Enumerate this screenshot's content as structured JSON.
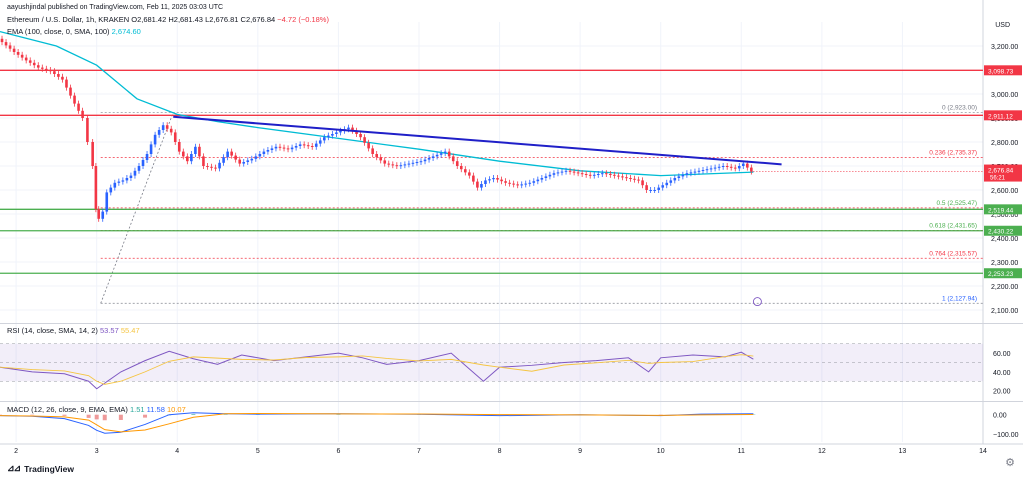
{
  "header": {
    "author_line": "aayushjindal published on TradingView.com, Feb 11, 2025 03:03 UTC",
    "symbol_line": "Ethereum / U.S. Dollar, 1h, KRAKEN",
    "ohlc": {
      "o": "O2,681.42",
      "h": "H2,681.43",
      "l": "L2,676.81",
      "c": "C2,676.84",
      "chg": "−4.72 (−0.18%)"
    },
    "ema_label": "EMA (100, close, 0, SMA, 100)",
    "ema_value": "2,674.60",
    "currency": "USD"
  },
  "rsi_header": {
    "label": "RSI (14, close, SMA, 14, 2)",
    "value": "53.57",
    "ma_value": "55.47"
  },
  "macd_header": {
    "label": "MACD (12, 26, close, 9, EMA, EMA)",
    "v1": "1.51",
    "v2": "11.58",
    "v3": "10.07"
  },
  "footer": {
    "brand": "TradingView"
  },
  "colors": {
    "up": "#2962ff",
    "down": "#f23645",
    "ema": "#00bcd4",
    "resistance": "#f23645",
    "support": "#4caf50",
    "trendline": "#1f1fc8",
    "rsi": "#7e57c2",
    "rsi_ma": "#f5c542",
    "macd": "#2962ff",
    "signal": "#ff9800"
  },
  "chart_data": {
    "type": "line",
    "title": "",
    "xlabel": "",
    "ylabel": "USD",
    "x_ticks": [
      "2",
      "3",
      "4",
      "5",
      "6",
      "7",
      "8",
      "9",
      "10",
      "11",
      "12",
      "13",
      "14"
    ],
    "x_range": [
      1.8,
      14
    ],
    "ylim": [
      2050,
      3300
    ],
    "y_ticks": [
      2100,
      2200,
      2300,
      2400,
      2500,
      2600,
      2700,
      2800,
      2900,
      3000,
      3100,
      3200
    ],
    "price_path": {
      "x": [
        1.8,
        2.0,
        2.15,
        2.3,
        2.45,
        2.6,
        2.75,
        2.85,
        2.92,
        2.98,
        3.0,
        3.05,
        3.1,
        3.15,
        3.25,
        3.35,
        3.45,
        3.55,
        3.65,
        3.75,
        3.85,
        3.95,
        4.05,
        4.15,
        4.25,
        4.35,
        4.5,
        4.65,
        4.8,
        4.95,
        5.1,
        5.25,
        5.4,
        5.55,
        5.7,
        5.85,
        6.0,
        6.15,
        6.3,
        6.45,
        6.6,
        6.75,
        6.9,
        7.05,
        7.2,
        7.35,
        7.5,
        7.65,
        7.75,
        7.85,
        7.95,
        8.1,
        8.25,
        8.4,
        8.55,
        8.7,
        8.85,
        9.0,
        9.15,
        9.3,
        9.45,
        9.6,
        9.75,
        9.85,
        9.95,
        10.05,
        10.2,
        10.35,
        10.5,
        10.65,
        10.8,
        10.95,
        11.05,
        11.15
      ],
      "y": [
        3230,
        3175,
        3140,
        3110,
        3095,
        3060,
        2960,
        2900,
        2800,
        2700,
        2520,
        2480,
        2510,
        2590,
        2630,
        2640,
        2660,
        2700,
        2750,
        2830,
        2870,
        2840,
        2760,
        2720,
        2780,
        2700,
        2690,
        2760,
        2710,
        2730,
        2760,
        2780,
        2770,
        2790,
        2780,
        2820,
        2840,
        2860,
        2820,
        2750,
        2710,
        2700,
        2710,
        2720,
        2740,
        2760,
        2700,
        2660,
        2610,
        2640,
        2650,
        2630,
        2620,
        2630,
        2650,
        2670,
        2680,
        2670,
        2660,
        2670,
        2660,
        2650,
        2640,
        2600,
        2600,
        2620,
        2650,
        2670,
        2680,
        2690,
        2700,
        2690,
        2710,
        2676.84
      ]
    },
    "ema100": {
      "x": [
        1.8,
        2.5,
        3.0,
        3.5,
        4.0,
        4.5,
        5.0,
        6.0,
        7.0,
        8.0,
        9.0,
        10.0,
        11.15
      ],
      "y": [
        3260,
        3200,
        3120,
        2980,
        2915,
        2885,
        2860,
        2815,
        2770,
        2720,
        2680,
        2660,
        2674.6
      ]
    },
    "trendline": {
      "x": [
        3.95,
        11.5
      ],
      "y": [
        2905,
        2707
      ]
    },
    "horizontal_levels": [
      {
        "value": 3098.73,
        "label": "3,098.73",
        "kind": "resistance"
      },
      {
        "value": 2911.12,
        "label": "2,911.12",
        "kind": "resistance"
      },
      {
        "value": 2519.44,
        "label": "2,519.44",
        "kind": "support"
      },
      {
        "value": 2430.22,
        "label": "2,430.22",
        "kind": "support"
      },
      {
        "value": 2253.23,
        "label": "2,253.23",
        "kind": "support"
      }
    ],
    "fibonacci": [
      {
        "value": 2923.0,
        "label": "0 (2,923.00)"
      },
      {
        "value": 2735.37,
        "label": "0.236 (2,735.37)"
      },
      {
        "value": 2525.47,
        "label": "0.5 (2,525.47)"
      },
      {
        "value": 2431.65,
        "label": "0.618 (2,431.65)"
      },
      {
        "value": 2315.57,
        "label": "0.764 (2,315.57)"
      },
      {
        "value": 2127.94,
        "label": "1 (2,127.94)"
      }
    ],
    "current_price": {
      "value": 2676.84,
      "label": "2,676.84",
      "countdown": "56:21"
    },
    "rsi": {
      "ylim": [
        10,
        90
      ],
      "y_ticks": [
        20,
        40,
        60
      ],
      "band": [
        30,
        70
      ],
      "x": [
        1.8,
        2.2,
        2.6,
        2.9,
        3.0,
        3.1,
        3.3,
        3.6,
        3.9,
        4.2,
        4.5,
        4.8,
        5.2,
        5.6,
        6.0,
        6.3,
        6.6,
        7.0,
        7.4,
        7.8,
        8.0,
        8.4,
        8.8,
        9.2,
        9.6,
        9.85,
        10.0,
        10.4,
        10.8,
        11.0,
        11.15
      ],
      "y": [
        45,
        40,
        38,
        30,
        22,
        28,
        40,
        52,
        62,
        54,
        48,
        58,
        52,
        56,
        60,
        55,
        48,
        52,
        60,
        30,
        45,
        47,
        50,
        52,
        55,
        40,
        55,
        58,
        56,
        61,
        53.57
      ]
    },
    "macd": {
      "ylim": [
        -140,
        60
      ],
      "y_ticks": [
        0.0,
        -100.0
      ],
      "y_tick_labels": [
        "0.00",
        "−100.00"
      ],
      "x": [
        1.8,
        2.2,
        2.6,
        2.9,
        3.0,
        3.1,
        3.3,
        3.6,
        3.9,
        4.2,
        4.6,
        5.0,
        6.0,
        7.0,
        8.0,
        9.0,
        10.0,
        10.5,
        11.15
      ],
      "y": [
        -5,
        -8,
        -20,
        -55,
        -80,
        -95,
        -90,
        -50,
        0,
        10,
        5,
        3,
        5,
        2,
        -5,
        0,
        -5,
        3,
        5
      ]
    }
  }
}
